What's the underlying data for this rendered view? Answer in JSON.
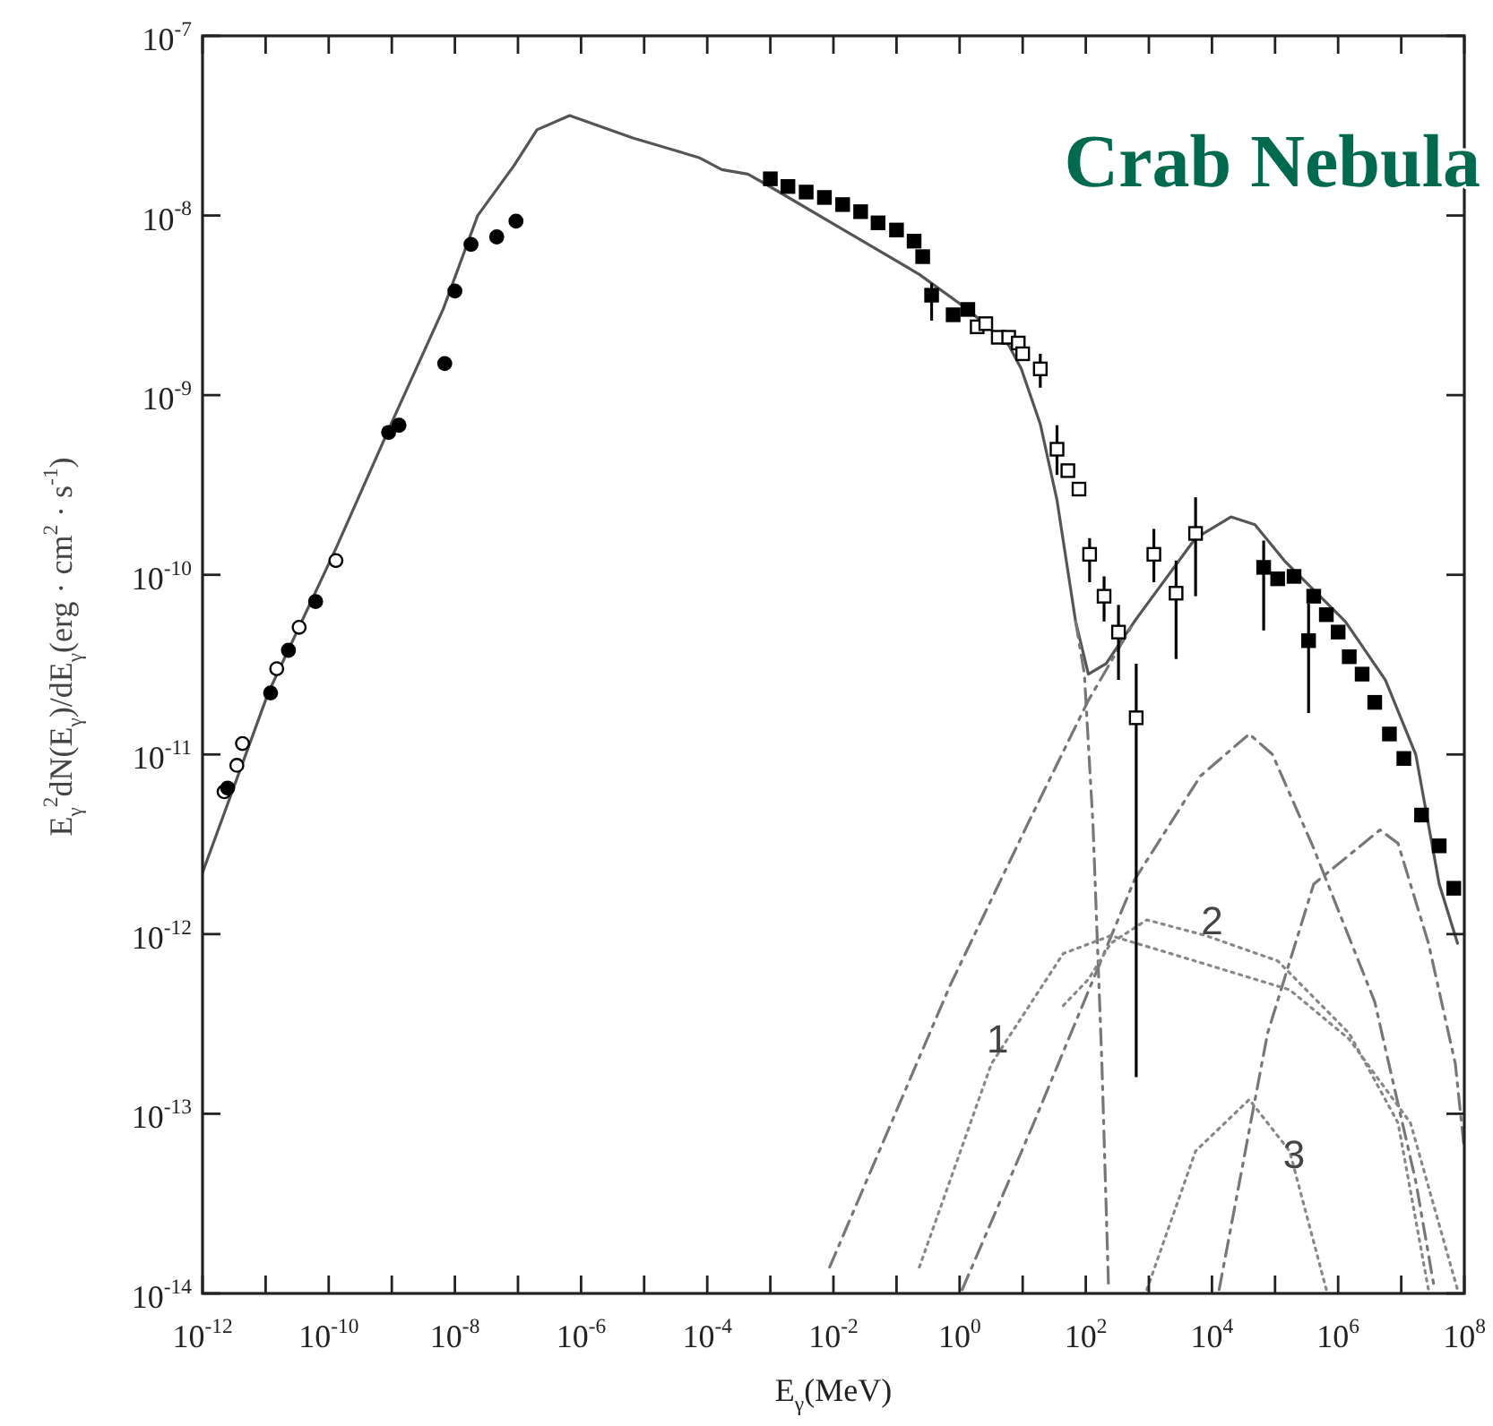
{
  "chart_data": {
    "type": "line",
    "title": "Crab Nebula",
    "xlabel": "E$_{γ}$(MeV)",
    "ylabel": "E$_{γ}$$^{2}$dN(E$_{γ}$)/dE$_{γ}$(erg · cm$^{2}$ · s$^{-1}$)",
    "log": "xy",
    "grid": false,
    "xlim": [
      1e-12,
      100000000.0
    ],
    "ylim": [
      1e-14,
      1e-07
    ],
    "xticks": [
      {
        "value": 1e-12,
        "label": "10$^{-12}$"
      },
      {
        "value": 1e-11,
        "label": null
      },
      {
        "value": 1e-10,
        "label": "10$^{-10}$"
      },
      {
        "value": 1e-09,
        "label": null
      },
      {
        "value": 1e-08,
        "label": "10$^{-8}$"
      },
      {
        "value": 1e-07,
        "label": null
      },
      {
        "value": 1e-06,
        "label": "10$^{-6}$"
      },
      {
        "value": 1e-05,
        "label": null
      },
      {
        "value": 0.0001,
        "label": "10$^{-4}$"
      },
      {
        "value": 0.001,
        "label": null
      },
      {
        "value": 0.01,
        "label": "10$^{-2}$"
      },
      {
        "value": 0.1,
        "label": null
      },
      {
        "value": 1,
        "label": "10$^{0}$"
      },
      {
        "value": 10,
        "label": null
      },
      {
        "value": 100,
        "label": "10$^{2}$"
      },
      {
        "value": 1000,
        "label": null
      },
      {
        "value": 10000,
        "label": "10$^{4}$"
      },
      {
        "value": 100000,
        "label": null
      },
      {
        "value": 1000000,
        "label": "10$^{6}$"
      },
      {
        "value": 10000000,
        "label": null
      },
      {
        "value": 100000000,
        "label": "10$^{8}$"
      }
    ],
    "yticks": [
      {
        "value": 1e-14,
        "label": "10$^{-14}$"
      },
      {
        "value": 1e-13,
        "label": "10$^{-13}$"
      },
      {
        "value": 1e-12,
        "label": "10$^{-12}$"
      },
      {
        "value": 1e-11,
        "label": "10$^{-11}$"
      },
      {
        "value": 1e-10,
        "label": "10$^{-10}$"
      },
      {
        "value": 1e-09,
        "label": "10$^{-9}$"
      },
      {
        "value": 1e-08,
        "label": "10$^{-8}$"
      },
      {
        "value": 1e-07,
        "label": "10$^{-7}$"
      }
    ],
    "series": [
      {
        "color": "#555555",
        "line_style": "solid",
        "x": [
          1e-12,
          1.1e-11,
          1.3e-10,
          1.1e-09,
          6.5e-09,
          2.3e-08,
          8.7e-08,
          2e-07,
          6.6e-07,
          6.6e-06,
          7.4e-05,
          0.00017,
          0.00044,
          0.00083,
          0.23,
          1.35,
          6.0,
          9.5,
          19,
          35,
          69,
          110,
          210,
          590,
          5500,
          20000,
          48000,
          140000,
          1300000,
          5600000,
          17000000,
          40000000,
          78000000
        ],
        "values": [
          2.2e-12,
          2.2e-11,
          1.4e-10,
          7.6e-10,
          3e-09,
          1e-08,
          1.9e-08,
          3e-08,
          3.6e-08,
          2.7e-08,
          2.1e-08,
          1.8e-08,
          1.7e-08,
          1.5e-08,
          4.7e-09,
          3e-09,
          1.9e-09,
          1.4e-09,
          6.9e-10,
          2.6e-10,
          5.5e-11,
          2.8e-11,
          3.2e-11,
          5.5e-11,
          1.6e-10,
          2.1e-10,
          1.9e-10,
          1.2e-10,
          5.5e-11,
          2.6e-11,
          1e-11,
          1.9e-12,
          8.9e-13
        ]
      },
      {
        "type": "line",
        "color": "#777777",
        "line_style": "dashed",
        "x": [
          69,
          95,
          130,
          180,
          230
        ],
        "values": [
          5.5e-11,
          2.8e-11,
          4.1e-12,
          1.9e-13,
          1.05e-14
        ]
      },
      {
        "type": "line",
        "color": "#777777",
        "line_style": "dashed",
        "x": [
          0.0087,
          0.71,
          12,
          110,
          590
        ],
        "values": [
          1.4e-14,
          5.2e-13,
          4.1e-12,
          2e-11,
          5.5e-11
        ]
      },
      {
        "type": "line",
        "color": "#777777",
        "line_style": "dashed",
        "x": [
          1.1,
          15,
          590,
          6600,
          39000,
          91000,
          410000,
          3800000,
          17000000,
          33000000
        ],
        "values": [
          1.05e-14,
          8.9e-14,
          2e-12,
          7.6e-12,
          1.3e-11,
          1e-11,
          3e-12,
          4.2e-13,
          4.2e-14,
          1.1e-14
        ]
      },
      {
        "type": "line",
        "color": "#777777",
        "line_style": "dashed",
        "x": [
          13000,
          76000,
          410000,
          4600000,
          8900000,
          27000000,
          72000000,
          100000000
        ],
        "values": [
          1.05e-14,
          2.8e-13,
          1.9e-12,
          3.8e-12,
          3.2e-12,
          8.9e-13,
          1.9e-13,
          6.3e-14
        ]
      },
      {
        "type": "line",
        "color": "#888888",
        "line_style": "dotted",
        "x": [
          0.23,
          3.2,
          44,
          250,
          2200,
          170000,
          1500000,
          14000000,
          78000000
        ],
        "values": [
          1.4e-14,
          1.9e-13,
          7.8e-13,
          9.8e-13,
          7.8e-13,
          4.9e-13,
          2.6e-13,
          8.9e-14,
          1.05e-14
        ]
      },
      {
        "type": "line",
        "color": "#888888",
        "line_style": "dotted",
        "x": [
          44,
          110,
          250,
          930,
          8100,
          110000,
          1500000,
          8900000,
          27000000
        ],
        "values": [
          4e-13,
          5.6e-13,
          8.9e-13,
          1.2e-12,
          9.8e-13,
          7.1e-13,
          2.8e-13,
          8.9e-14,
          1.05e-14
        ]
      },
      {
        "type": "line",
        "color": "#888888",
        "line_style": "dotted",
        "x": [
          930,
          5500,
          39000,
          170000,
          650000
        ],
        "values": [
          1.05e-14,
          6.2e-14,
          1.2e-13,
          6.2e-14,
          1.05e-14
        ]
      },
      {
        "type": "scatter",
        "marker": "circle",
        "color": "#ffffff",
        "x": [
          2.2e-12,
          3.5e-12,
          4.3e-12,
          1.5e-11,
          3.4e-11,
          1.3e-10
        ],
        "values": [
          6.2e-12,
          8.7e-12,
          1.15e-11,
          3e-11,
          5.1e-11,
          1.2e-10
        ]
      },
      {
        "type": "scatter",
        "marker": "circle",
        "color": "#000000",
        "x": [
          2.5e-12,
          1.2e-11,
          2.3e-11,
          6.2e-11,
          8.9e-10,
          1.3e-09,
          6.9e-09,
          1e-08,
          1.8e-08,
          4.6e-08,
          9.3e-08
        ],
        "values": [
          6.5e-12,
          2.2e-11,
          3.8e-11,
          7.1e-11,
          6.2e-10,
          6.8e-10,
          1.5e-09,
          3.8e-09,
          6.9e-09,
          7.6e-09,
          9.3e-09
        ]
      },
      {
        "type": "scatter",
        "marker": "square",
        "color": "#000000",
        "x": [
          0.001,
          0.0019,
          0.0037,
          0.0072,
          0.014,
          0.027,
          0.051,
          0.1,
          0.19,
          0.26,
          0.36,
          0.79,
          1.35,
          66000,
          110000,
          200000,
          340000,
          410000,
          650000,
          1000000,
          1500000,
          2400000,
          3800000,
          6500000,
          11000000,
          21000000,
          40000000,
          68000000
        ],
        "values": [
          1.6e-08,
          1.45e-08,
          1.35e-08,
          1.26e-08,
          1.15e-08,
          1.05e-08,
          9.1e-09,
          8.3e-09,
          7.2e-09,
          5.9e-09,
          3.6e-09,
          2.8e-09,
          3e-09,
          1.1e-10,
          9.5e-11,
          9.8e-11,
          4.3e-11,
          7.6e-11,
          6e-11,
          4.8e-11,
          3.5e-11,
          2.8e-11,
          1.95e-11,
          1.3e-11,
          9.5e-12,
          4.6e-12,
          3.1e-12,
          1.8e-12
        ],
        "errors": [
          null,
          null,
          null,
          null,
          null,
          null,
          null,
          null,
          null,
          null,
          [
            2.6e-09,
            4.2e-09
          ],
          null,
          null,
          [
            4.9e-11,
            1.55e-10
          ],
          null,
          null,
          [
            1.7e-11,
            6.9e-11
          ],
          null,
          null,
          null,
          null,
          null,
          null,
          null,
          null,
          null,
          null,
          null
        ]
      },
      {
        "type": "scatter",
        "marker": "square",
        "color": "#ffffff",
        "x": [
          1.9,
          2.6,
          4.1,
          6.0,
          8.5,
          10,
          19,
          35,
          52,
          78,
          115,
          195,
          330,
          630,
          1200,
          2700,
          5500
        ],
        "values": [
          2.4e-09,
          2.5e-09,
          2.1e-09,
          2.1e-09,
          1.95e-09,
          1.7e-09,
          1.4e-09,
          5e-10,
          3.8e-10,
          3e-10,
          1.3e-10,
          7.6e-11,
          4.8e-11,
          1.6e-11,
          1.3e-10,
          7.9e-11,
          1.7e-10
        ],
        "errors": [
          null,
          null,
          null,
          null,
          null,
          null,
          [
            1.1e-09,
            1.7e-09
          ],
          [
            3.6e-10,
            6.8e-10
          ],
          null,
          null,
          [
            9.1e-11,
            1.6e-10
          ],
          [
            5.5e-11,
            9.8e-11
          ],
          [
            2.6e-11,
            6.8e-11
          ],
          [
            1.6e-13,
            3.2e-11
          ],
          [
            9.1e-11,
            1.8e-10
          ],
          [
            3.4e-11,
            1.2e-10
          ],
          [
            7.6e-11,
            2.7e-10
          ]
        ]
      }
    ],
    "annotations": [
      {
        "text": "1",
        "x": 4,
        "y": 2.2e-13
      },
      {
        "text": "2",
        "x": 10000,
        "y": 1e-12
      },
      {
        "text": "3",
        "x": 200000,
        "y": 5e-14
      }
    ]
  }
}
